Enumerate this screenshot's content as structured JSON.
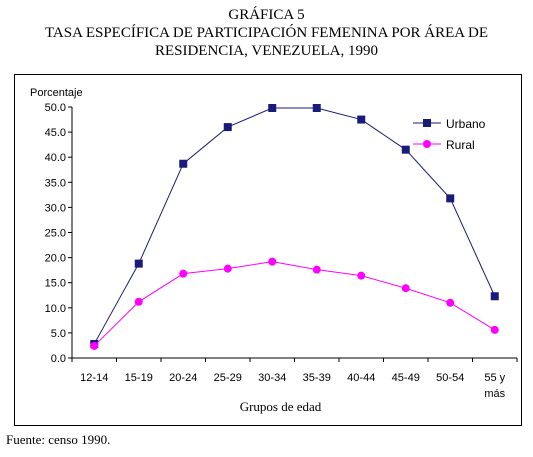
{
  "header": {
    "label": "GRÁFICA 5",
    "title_line1": "TASA ESPECÍFICA DE PARTICIPACIÓN FEMENINA POR ÁREA DE",
    "title_line2": "RESIDENCIA, VENEZUELA, 1990"
  },
  "footer": {
    "source": "Fuente: censo 1990."
  },
  "colors": {
    "urbano": "#1a1a7a",
    "rural": "#ff00ff",
    "axis": "#000000"
  },
  "chart_data": {
    "type": "line",
    "xlabel": "Grupos de edad",
    "ylabel": "Porcentaje",
    "ylim": [
      0,
      50
    ],
    "yticks": [
      "0.0",
      "5.0",
      "10.0",
      "15.0",
      "20.0",
      "25.0",
      "30.0",
      "35.0",
      "40.0",
      "45.0",
      "50.0"
    ],
    "categories": [
      "12-14",
      "15-19",
      "20-24",
      "25-29",
      "30-34",
      "35-39",
      "40-44",
      "45-49",
      "50-54",
      "55 y"
    ],
    "last_category_line2": "más",
    "grid": false,
    "legend": "top-right",
    "series": [
      {
        "name": "Urbano",
        "marker": "square",
        "values": [
          2.8,
          18.8,
          38.7,
          46.0,
          49.8,
          49.8,
          47.5,
          41.5,
          31.8,
          12.3
        ]
      },
      {
        "name": "Rural",
        "marker": "circle",
        "values": [
          2.4,
          11.2,
          16.8,
          17.8,
          19.2,
          17.6,
          16.4,
          13.9,
          11.0,
          5.6
        ]
      }
    ]
  }
}
